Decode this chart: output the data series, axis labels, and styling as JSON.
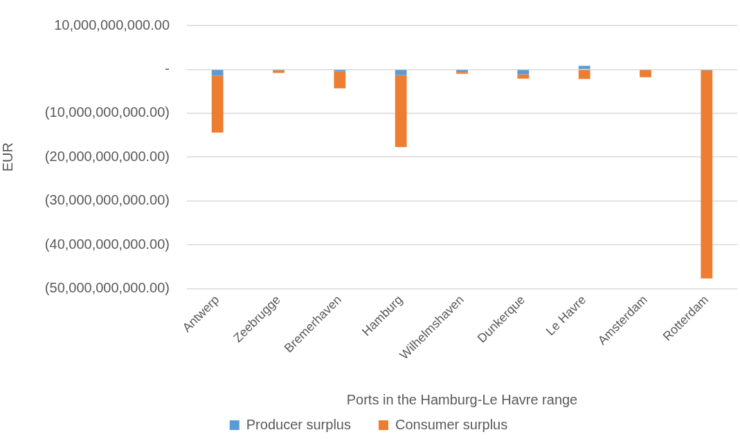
{
  "chart_data": {
    "type": "bar",
    "stacked": true,
    "xlabel": "Ports in the Hamburg-Le Havre range",
    "ylabel": "EUR",
    "categories": [
      "Antwerp",
      "Zeebrugge",
      "Bremerhaven",
      "Hamburg",
      "Wilhelmshaven",
      "Dunkerque",
      "Le Havre",
      "Amsterdam",
      "Rotterdam"
    ],
    "series": [
      {
        "name": "Producer surplus",
        "color": "#5b9bd5",
        "values": [
          -1400000000,
          -200000000,
          -500000000,
          -1300000000,
          -600000000,
          -1100000000,
          800000000,
          0,
          -200000000
        ]
      },
      {
        "name": "Consumer surplus",
        "color": "#ed7d31",
        "values": [
          -13000000000,
          -600000000,
          -3800000000,
          -16400000000,
          -400000000,
          -1000000000,
          -2200000000,
          -1800000000,
          -47500000000
        ]
      }
    ],
    "ylim": [
      -50000000000,
      10000000000
    ],
    "yticks": [
      {
        "value": -50000000000,
        "label": "(50,000,000,000.00)"
      },
      {
        "value": -40000000000,
        "label": "(40,000,000,000.00)"
      },
      {
        "value": -30000000000,
        "label": "(30,000,000,000.00)"
      },
      {
        "value": -20000000000,
        "label": "(20,000,000,000.00)"
      },
      {
        "value": -10000000000,
        "label": "(10,000,000,000.00)"
      },
      {
        "value": 0,
        "label": "-"
      },
      {
        "value": 10000000000,
        "label": "10,000,000,000.00"
      }
    ],
    "grid": "y",
    "legend": "bottom"
  }
}
